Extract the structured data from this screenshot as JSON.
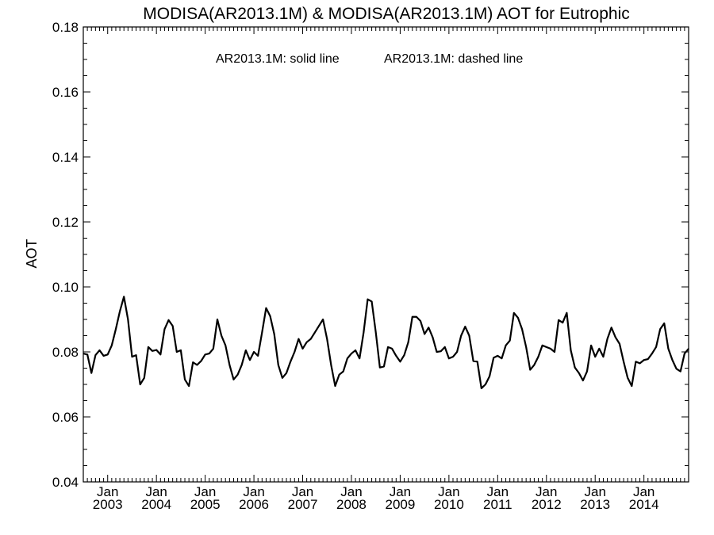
{
  "chart_data": {
    "type": "line",
    "title": "MODISA(AR2013.1M) & MODISA(AR2013.1M)  AOT for Eutrophic",
    "xlabel": "",
    "ylabel": "AOT",
    "annotations": [
      "AR2013.1M: solid line",
      "AR2013.1M: dashed line"
    ],
    "ylim": [
      0.04,
      0.18
    ],
    "yticks": [
      0.04,
      0.06,
      0.08,
      0.1,
      0.12,
      0.14,
      0.16,
      0.18
    ],
    "ytick_labels": [
      "0.04",
      "0.06",
      "0.08",
      "0.10",
      "0.12",
      "0.14",
      "0.16",
      "0.18"
    ],
    "xlim": [
      "2002-07",
      "2014-12"
    ],
    "xticks": [
      {
        "month": "Jan",
        "year": "2003"
      },
      {
        "month": "Jan",
        "year": "2004"
      },
      {
        "month": "Jan",
        "year": "2005"
      },
      {
        "month": "Jan",
        "year": "2006"
      },
      {
        "month": "Jan",
        "year": "2007"
      },
      {
        "month": "Jan",
        "year": "2008"
      },
      {
        "month": "Jan",
        "year": "2009"
      },
      {
        "month": "Jan",
        "year": "2010"
      },
      {
        "month": "Jan",
        "year": "2011"
      },
      {
        "month": "Jan",
        "year": "2012"
      },
      {
        "month": "Jan",
        "year": "2013"
      },
      {
        "month": "Jan",
        "year": "2014"
      }
    ],
    "grid": false,
    "series": [
      {
        "style": "solid",
        "color": "#000000",
        "x": [
          "2002-07",
          "2002-08",
          "2002-09",
          "2002-10",
          "2002-11",
          "2002-12",
          "2003-01",
          "2003-02",
          "2003-03",
          "2003-04",
          "2003-05",
          "2003-06",
          "2003-07",
          "2003-08",
          "2003-09",
          "2003-10",
          "2003-11",
          "2003-12",
          "2004-01",
          "2004-02",
          "2004-03",
          "2004-04",
          "2004-05",
          "2004-06",
          "2004-07",
          "2004-08",
          "2004-09",
          "2004-10",
          "2004-11",
          "2004-12",
          "2005-01",
          "2005-02",
          "2005-03",
          "2005-04",
          "2005-05",
          "2005-06",
          "2005-07",
          "2005-08",
          "2005-09",
          "2005-10",
          "2005-11",
          "2005-12",
          "2006-01",
          "2006-02",
          "2006-03",
          "2006-04",
          "2006-05",
          "2006-06",
          "2006-07",
          "2006-08",
          "2006-09",
          "2006-10",
          "2006-11",
          "2006-12",
          "2007-01",
          "2007-02",
          "2007-03",
          "2007-04",
          "2007-05",
          "2007-06",
          "2007-07",
          "2007-08",
          "2007-09",
          "2007-10",
          "2007-11",
          "2007-12",
          "2008-01",
          "2008-02",
          "2008-03",
          "2008-04",
          "2008-05",
          "2008-06",
          "2008-07",
          "2008-08",
          "2008-09",
          "2008-10",
          "2008-11",
          "2008-12",
          "2009-01",
          "2009-02",
          "2009-03",
          "2009-04",
          "2009-05",
          "2009-06",
          "2009-07",
          "2009-08",
          "2009-09",
          "2009-10",
          "2009-11",
          "2009-12",
          "2010-01",
          "2010-02",
          "2010-03",
          "2010-04",
          "2010-05",
          "2010-06",
          "2010-07",
          "2010-08",
          "2010-09",
          "2010-10",
          "2010-11",
          "2010-12",
          "2011-01",
          "2011-02",
          "2011-03",
          "2011-04",
          "2011-05",
          "2011-06",
          "2011-07",
          "2011-08",
          "2011-09",
          "2011-10",
          "2011-11",
          "2011-12",
          "2012-01",
          "2012-02",
          "2012-03",
          "2012-04",
          "2012-05",
          "2012-06",
          "2012-07",
          "2012-08",
          "2012-09",
          "2012-10",
          "2012-11",
          "2012-12",
          "2013-01",
          "2013-02",
          "2013-03",
          "2013-04",
          "2013-05",
          "2013-06",
          "2013-07",
          "2013-08",
          "2013-09",
          "2013-10",
          "2013-11",
          "2013-12",
          "2014-01",
          "2014-02",
          "2014-03",
          "2014-04",
          "2014-05",
          "2014-06",
          "2014-07",
          "2014-08",
          "2014-09",
          "2014-10",
          "2014-11",
          "2014-12"
        ],
        "y": [
          0.0795,
          0.0792,
          0.0735,
          0.079,
          0.0805,
          0.0788,
          0.0792,
          0.082,
          0.087,
          0.0925,
          0.097,
          0.09,
          0.0785,
          0.079,
          0.07,
          0.072,
          0.0815,
          0.0803,
          0.0806,
          0.0792,
          0.087,
          0.0898,
          0.088,
          0.08,
          0.0805,
          0.0715,
          0.0695,
          0.0768,
          0.076,
          0.0772,
          0.0792,
          0.0795,
          0.081,
          0.09,
          0.085,
          0.082,
          0.076,
          0.0715,
          0.073,
          0.076,
          0.0805,
          0.0775,
          0.08,
          0.0788,
          0.086,
          0.0935,
          0.091,
          0.0855,
          0.076,
          0.072,
          0.0735,
          0.077,
          0.08,
          0.084,
          0.081,
          0.083,
          0.084,
          0.086,
          0.088,
          0.09,
          0.084,
          0.076,
          0.0695,
          0.073,
          0.074,
          0.078,
          0.0795,
          0.0805,
          0.078,
          0.086,
          0.0962,
          0.0955,
          0.086,
          0.0752,
          0.0755,
          0.0815,
          0.081,
          0.0788,
          0.077,
          0.079,
          0.083,
          0.0908,
          0.0908,
          0.0895,
          0.0855,
          0.0875,
          0.0845,
          0.08,
          0.0802,
          0.0815,
          0.078,
          0.0785,
          0.08,
          0.085,
          0.0878,
          0.085,
          0.0772,
          0.077,
          0.0688,
          0.07,
          0.0725,
          0.0782,
          0.0788,
          0.078,
          0.082,
          0.0835,
          0.092,
          0.0905,
          0.087,
          0.0815,
          0.0745,
          0.076,
          0.0785,
          0.082,
          0.0815,
          0.081,
          0.08,
          0.0898,
          0.089,
          0.092,
          0.0805,
          0.0752,
          0.0735,
          0.0712,
          0.074,
          0.082,
          0.0785,
          0.081,
          0.0785,
          0.084,
          0.0875,
          0.0845,
          0.0825,
          0.077,
          0.072,
          0.0695,
          0.077,
          0.0765,
          0.0775,
          0.0778,
          0.0795,
          0.0815,
          0.087,
          0.0888,
          0.081,
          0.0775,
          0.0748,
          0.074,
          0.0795,
          0.081
        ]
      }
    ]
  }
}
